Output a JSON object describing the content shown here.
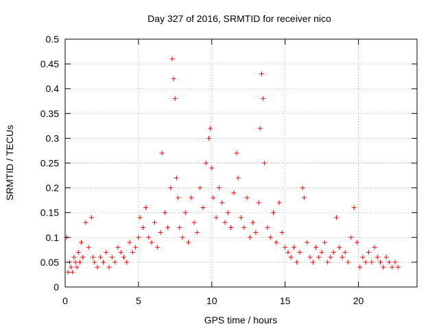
{
  "chart_data": {
    "type": "scatter",
    "title": "Day 327 of 2016, SRMTID for receiver nico",
    "xlabel": "GPS time / hours",
    "ylabel": "SRMTID / TECUs",
    "xlim": [
      0,
      24
    ],
    "ylim": [
      0,
      0.5
    ],
    "xticks": [
      "0",
      "5",
      "10",
      "15",
      "20"
    ],
    "yticks": [
      "0",
      "0.05",
      "0.1",
      "0.15",
      "0.2",
      "0.25",
      "0.3",
      "0.35",
      "0.4",
      "0.45",
      "0.5"
    ],
    "grid": true,
    "legend": "none",
    "marker": "plus",
    "color": "#ff0000",
    "series": [
      {
        "x": [
          0.1,
          0.2,
          0.3,
          0.4,
          0.5,
          0.6,
          0.7,
          0.8,
          0.9,
          1.0,
          1.1,
          1.2,
          1.4,
          1.6,
          1.8,
          1.9,
          2.0,
          2.2,
          2.4,
          2.6,
          2.8,
          3.0,
          3.2,
          3.4,
          3.6,
          3.8,
          4.0,
          4.2,
          4.4,
          4.6,
          4.8,
          5.0,
          5.1,
          5.3,
          5.5,
          5.7,
          5.9,
          6.1,
          6.3,
          6.5,
          6.6,
          6.8,
          7.0,
          7.2,
          7.3,
          7.4,
          7.5,
          7.6,
          7.7,
          7.8,
          8.0,
          8.2,
          8.4,
          8.6,
          8.8,
          9.0,
          9.2,
          9.4,
          9.6,
          9.8,
          9.9,
          10.0,
          10.1,
          10.3,
          10.5,
          10.7,
          10.9,
          11.1,
          11.3,
          11.5,
          11.7,
          11.8,
          12.0,
          12.2,
          12.4,
          12.6,
          12.8,
          13.0,
          13.2,
          13.3,
          13.4,
          13.5,
          13.6,
          13.8,
          14.0,
          14.2,
          14.4,
          14.6,
          14.8,
          15.0,
          15.2,
          15.4,
          15.6,
          15.8,
          16.0,
          16.2,
          16.3,
          16.5,
          16.7,
          16.9,
          17.1,
          17.3,
          17.5,
          17.7,
          17.9,
          18.1,
          18.3,
          18.5,
          18.7,
          18.9,
          19.1,
          19.3,
          19.5,
          19.7,
          19.9,
          20.1,
          20.3,
          20.5,
          20.7,
          20.9,
          21.1,
          21.3,
          21.5,
          21.7,
          21.9,
          22.1,
          22.3,
          22.5,
          22.7
        ],
        "y": [
          0.1,
          0.03,
          0.05,
          0.04,
          0.03,
          0.06,
          0.05,
          0.04,
          0.07,
          0.05,
          0.09,
          0.06,
          0.13,
          0.08,
          0.14,
          0.06,
          0.05,
          0.04,
          0.06,
          0.05,
          0.07,
          0.04,
          0.06,
          0.05,
          0.08,
          0.07,
          0.06,
          0.05,
          0.09,
          0.07,
          0.08,
          0.1,
          0.14,
          0.12,
          0.16,
          0.1,
          0.09,
          0.13,
          0.08,
          0.11,
          0.27,
          0.15,
          0.12,
          0.2,
          0.46,
          0.42,
          0.38,
          0.22,
          0.18,
          0.12,
          0.1,
          0.15,
          0.09,
          0.18,
          0.13,
          0.11,
          0.2,
          0.16,
          0.25,
          0.3,
          0.32,
          0.24,
          0.18,
          0.14,
          0.2,
          0.17,
          0.13,
          0.15,
          0.12,
          0.19,
          0.27,
          0.22,
          0.14,
          0.12,
          0.18,
          0.1,
          0.13,
          0.11,
          0.17,
          0.32,
          0.43,
          0.38,
          0.25,
          0.12,
          0.1,
          0.15,
          0.09,
          0.17,
          0.11,
          0.08,
          0.07,
          0.06,
          0.08,
          0.05,
          0.07,
          0.2,
          0.18,
          0.09,
          0.06,
          0.05,
          0.08,
          0.06,
          0.07,
          0.09,
          0.05,
          0.06,
          0.07,
          0.14,
          0.08,
          0.06,
          0.07,
          0.05,
          0.1,
          0.16,
          0.09,
          0.04,
          0.06,
          0.05,
          0.07,
          0.05,
          0.08,
          0.06,
          0.05,
          0.04,
          0.06,
          0.05,
          0.04,
          0.05,
          0.04
        ]
      }
    ]
  }
}
